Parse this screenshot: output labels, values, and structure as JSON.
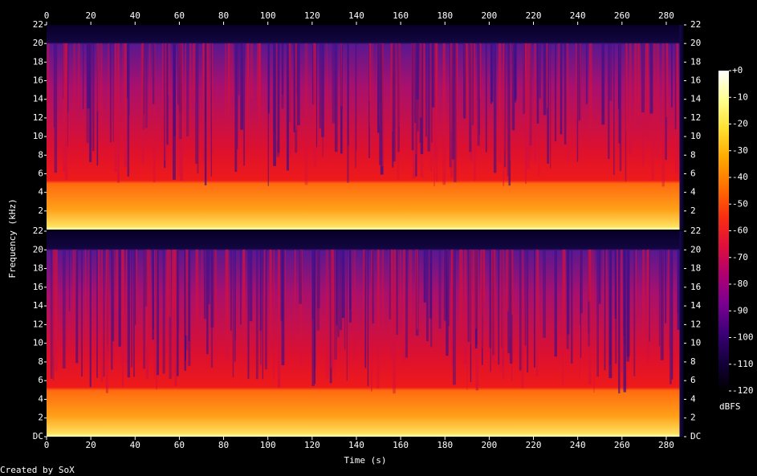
{
  "chart_data": {
    "type": "spectrogram",
    "xlabel": "Time (s)",
    "ylabel": "Frequency (kHz)",
    "credit": "Created by SoX",
    "xlim": [
      0,
      288
    ],
    "xticks": [
      0,
      20,
      40,
      60,
      80,
      100,
      120,
      140,
      160,
      180,
      200,
      220,
      240,
      260,
      280
    ],
    "channels": [
      {
        "ylim": [
          0,
          22
        ],
        "yticks": [
          2,
          4,
          6,
          8,
          10,
          12,
          14,
          16,
          18,
          20,
          22
        ]
      },
      {
        "ylim": [
          0,
          22
        ],
        "yticks": [
          {
            "value": 0,
            "label": "DC"
          },
          2,
          4,
          6,
          8,
          10,
          12,
          14,
          16,
          18,
          20,
          22
        ]
      }
    ],
    "colorbar": {
      "label": "dBFS",
      "lim": [
        -120,
        0
      ],
      "ticks": [
        {
          "value": 0,
          "label": "+0"
        },
        -10,
        -20,
        -30,
        -40,
        -50,
        -60,
        -70,
        -80,
        -90,
        -100,
        -110,
        -120
      ],
      "colormap": [
        "#000000",
        "#14003c",
        "#3c0078",
        "#7a0090",
        "#b00070",
        "#e0103a",
        "#f83010",
        "#ff7000",
        "#ffa800",
        "#ffe030",
        "#ffff90",
        "#ffffff"
      ]
    }
  }
}
